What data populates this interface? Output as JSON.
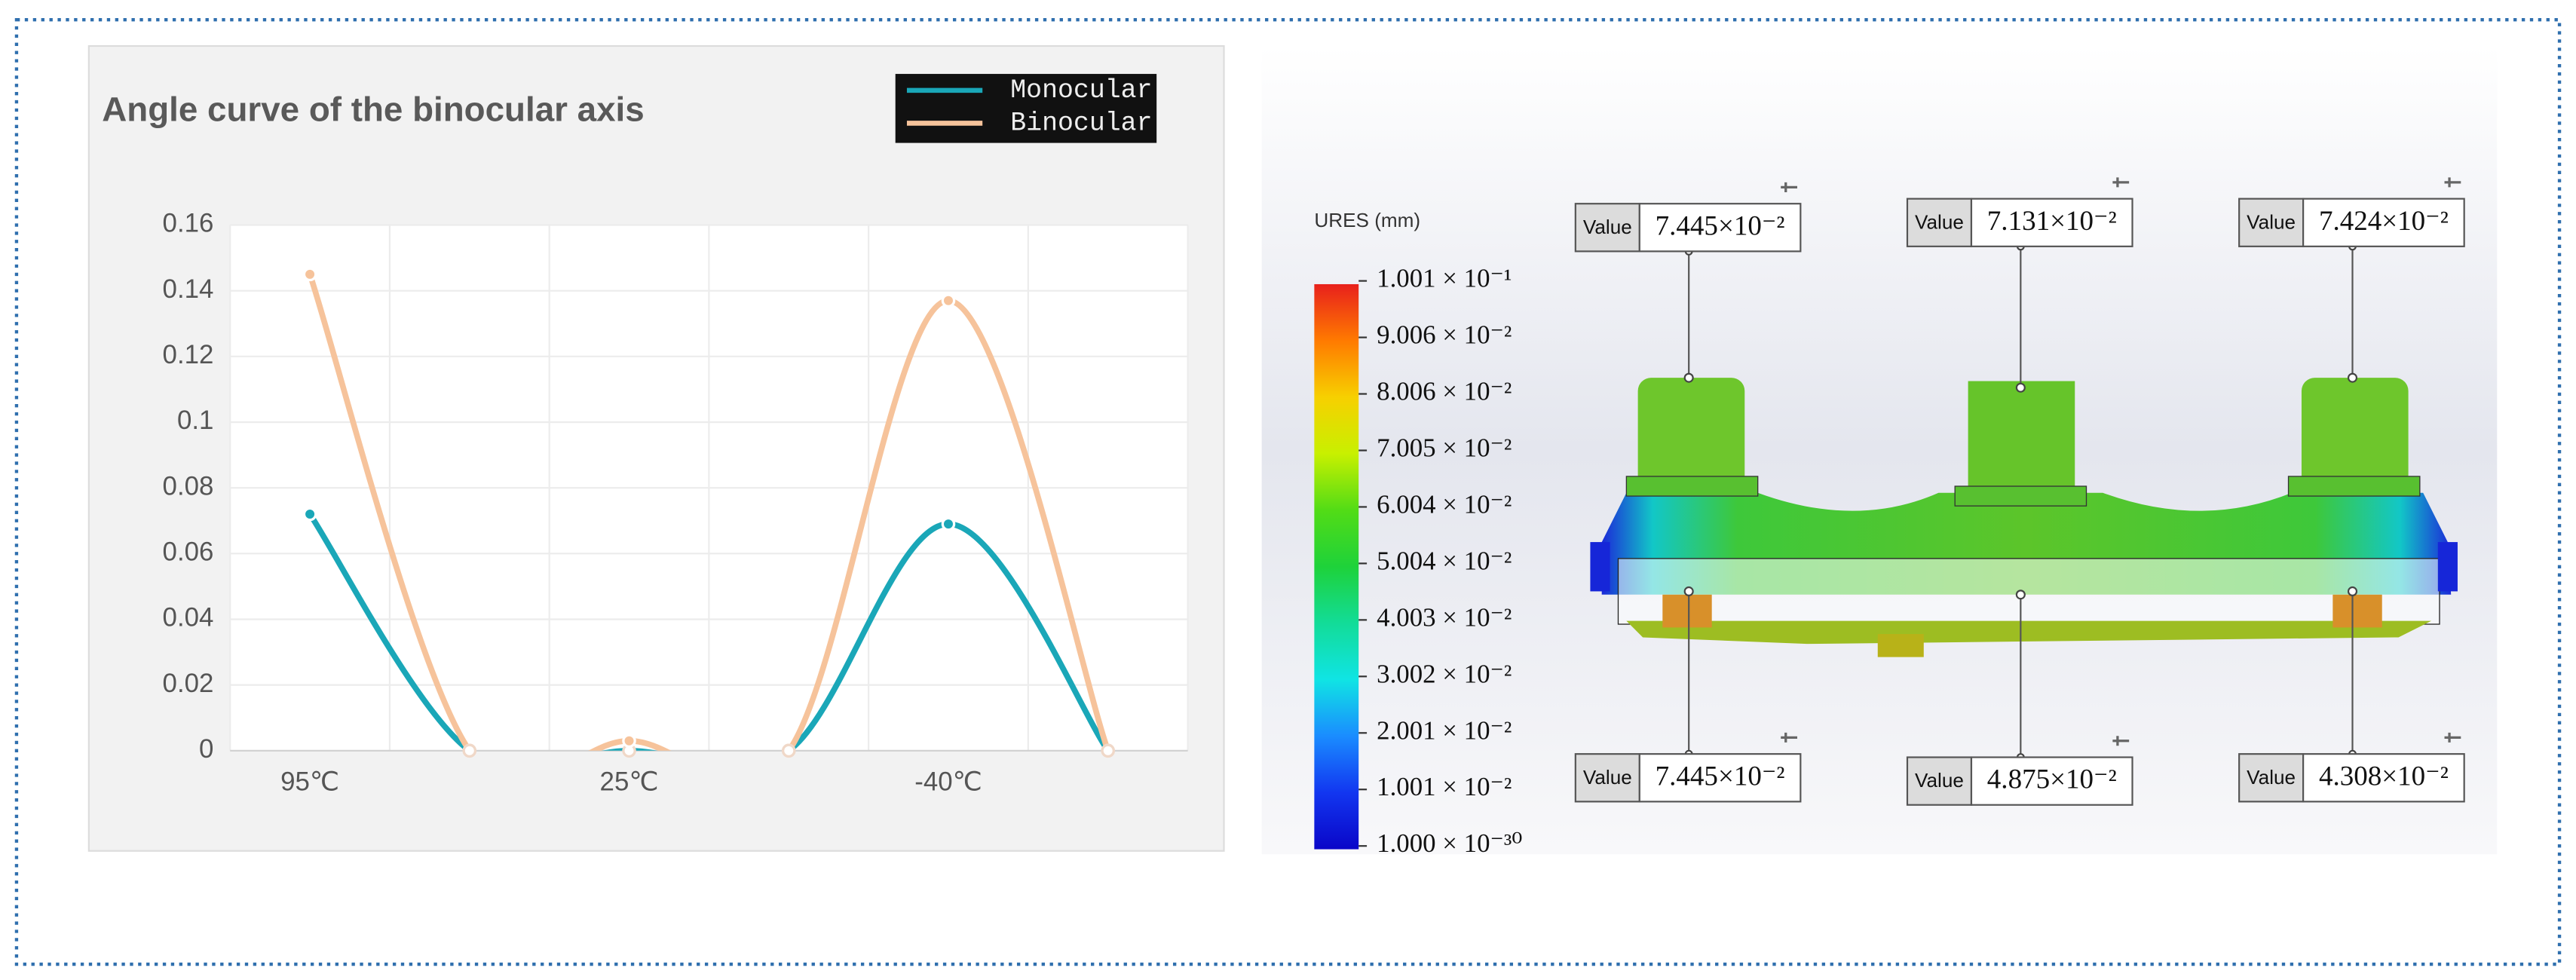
{
  "chart_data": {
    "type": "line",
    "title": "Angle curve of the binocular axis",
    "categories": [
      "95℃",
      null,
      "25℃",
      null,
      "-40℃",
      null
    ],
    "series": [
      {
        "name": "Monocular",
        "color": "#1aa7b8",
        "values": [
          0.072,
          0,
          0,
          0,
          0.069,
          0
        ]
      },
      {
        "name": "Binocular",
        "color": "#f6c39b",
        "values": [
          0.145,
          0,
          0.003,
          0,
          0.137,
          0
        ]
      }
    ],
    "ylim": [
      0,
      0.16
    ],
    "yticks": [
      0,
      0.02,
      0.04,
      0.06,
      0.08,
      0.1,
      0.12,
      0.14,
      0.16
    ],
    "grid": true,
    "smooth": true,
    "legend": "top-right"
  },
  "fea": {
    "legend_title": "URES (mm)",
    "scale_labels": [
      "1.001 × 10⁻¹",
      "9.006 × 10⁻²",
      "8.006 × 10⁻²",
      "7.005 × 10⁻²",
      "6.004 × 10⁻²",
      "5.004 × 10⁻²",
      "4.003 × 10⁻²",
      "3.002 × 10⁻²",
      "2.001 × 10⁻²",
      "1.001 × 10⁻²",
      "1.000 × 10⁻³⁰"
    ],
    "probes": [
      {
        "label": "Value",
        "value": "7.445×10⁻²"
      },
      {
        "label": "Value",
        "value": "7.131×10⁻²"
      },
      {
        "label": "Value",
        "value": "7.424×10⁻²"
      },
      {
        "label": "Value",
        "value": "7.445×10⁻²"
      },
      {
        "label": "Value",
        "value": "4.875×10⁻²"
      },
      {
        "label": "Value",
        "value": "4.308×10⁻²"
      }
    ]
  }
}
